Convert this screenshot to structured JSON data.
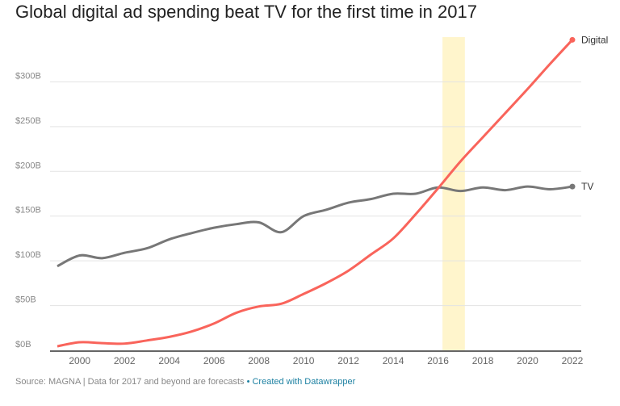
{
  "chart_data": {
    "type": "line",
    "title": "Global digital ad spending beat TV for the first time in 2017",
    "x": [
      1999,
      2000,
      2001,
      2002,
      2003,
      2004,
      2005,
      2006,
      2007,
      2008,
      2009,
      2010,
      2011,
      2012,
      2013,
      2014,
      2015,
      2016,
      2017,
      2018,
      2019,
      2020,
      2021,
      2022
    ],
    "series": [
      {
        "name": "TV",
        "color": "#777777",
        "values": [
          94,
          106,
          103,
          109,
          114,
          124,
          131,
          137,
          141,
          143,
          132,
          150,
          157,
          165,
          169,
          175,
          175,
          182,
          178,
          182,
          179,
          183,
          180,
          183
        ]
      },
      {
        "name": "Digital",
        "color": "#f9645b",
        "values": [
          4.5,
          9,
          8,
          7.5,
          11,
          15,
          21,
          30,
          42,
          49,
          52,
          63,
          75,
          89,
          107,
          125,
          152,
          181,
          211,
          238,
          265,
          292,
          320,
          347
        ]
      }
    ],
    "xlim": [
      1999,
      2022
    ],
    "ylim": [
      0,
      350
    ],
    "x_ticks": [
      "2000",
      "2002",
      "2004",
      "2006",
      "2008",
      "2010",
      "2012",
      "2014",
      "2016",
      "2018",
      "2020",
      "2022"
    ],
    "y_ticks": [
      "$0B",
      "$50B",
      "$100B",
      "$150B",
      "$200B",
      "$250B",
      "$300B"
    ],
    "highlight_range": [
      2016.2,
      2017.2
    ],
    "highlight_color": "#fff5cc",
    "grid": true,
    "legend": "inline labels at line ends"
  },
  "footer": {
    "source": "Source: MAGNA | Data for 2017 and beyond are forecasts",
    "separator": " • ",
    "credit": "Created with Datawrapper"
  }
}
